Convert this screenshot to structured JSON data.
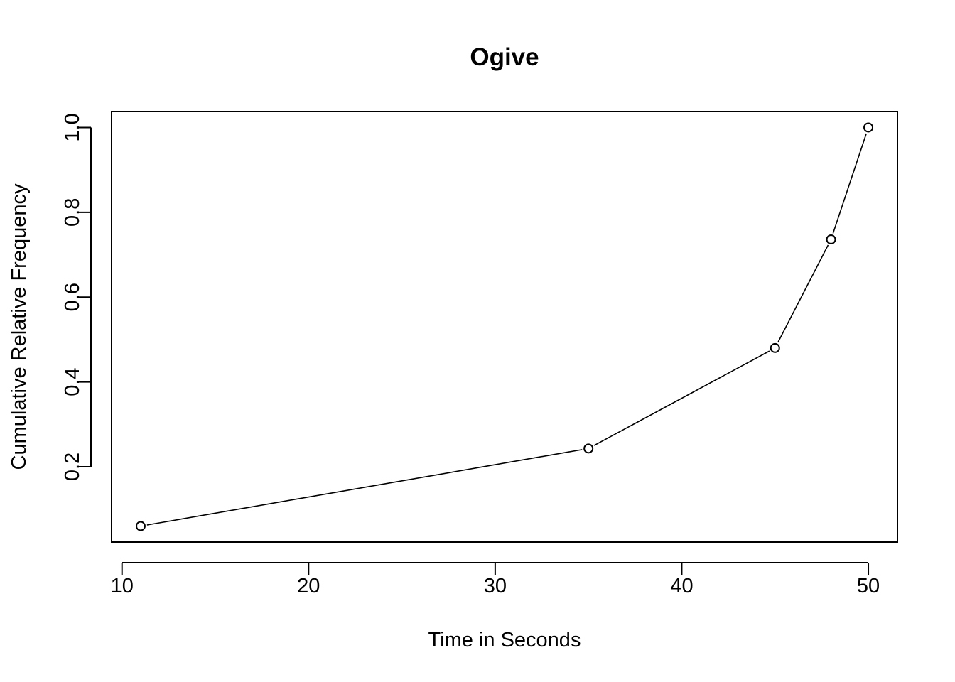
{
  "chart_data": {
    "type": "line",
    "title": "Ogive",
    "xlabel": "Time in Seconds",
    "ylabel": "Cumulative Relative Frequency",
    "xlim": [
      9.44,
      51.56
    ],
    "ylim": [
      0.0224,
      1.0376
    ],
    "xticks": [
      10,
      20,
      30,
      40,
      50
    ],
    "yticks": [
      0.2,
      0.4,
      0.6,
      0.8,
      1.0
    ],
    "xtick_labels": [
      "10",
      "20",
      "30",
      "40",
      "50"
    ],
    "ytick_labels": [
      "0.2",
      "0.4",
      "0.6",
      "0.8",
      "1.0"
    ],
    "series": [
      {
        "x": [
          11,
          35,
          45,
          48,
          50
        ],
        "y": [
          0.06,
          0.243,
          0.48,
          0.736,
          1.0
        ],
        "marker": "open-circle",
        "color": "#000000"
      }
    ],
    "grid": false,
    "legend": "none"
  }
}
